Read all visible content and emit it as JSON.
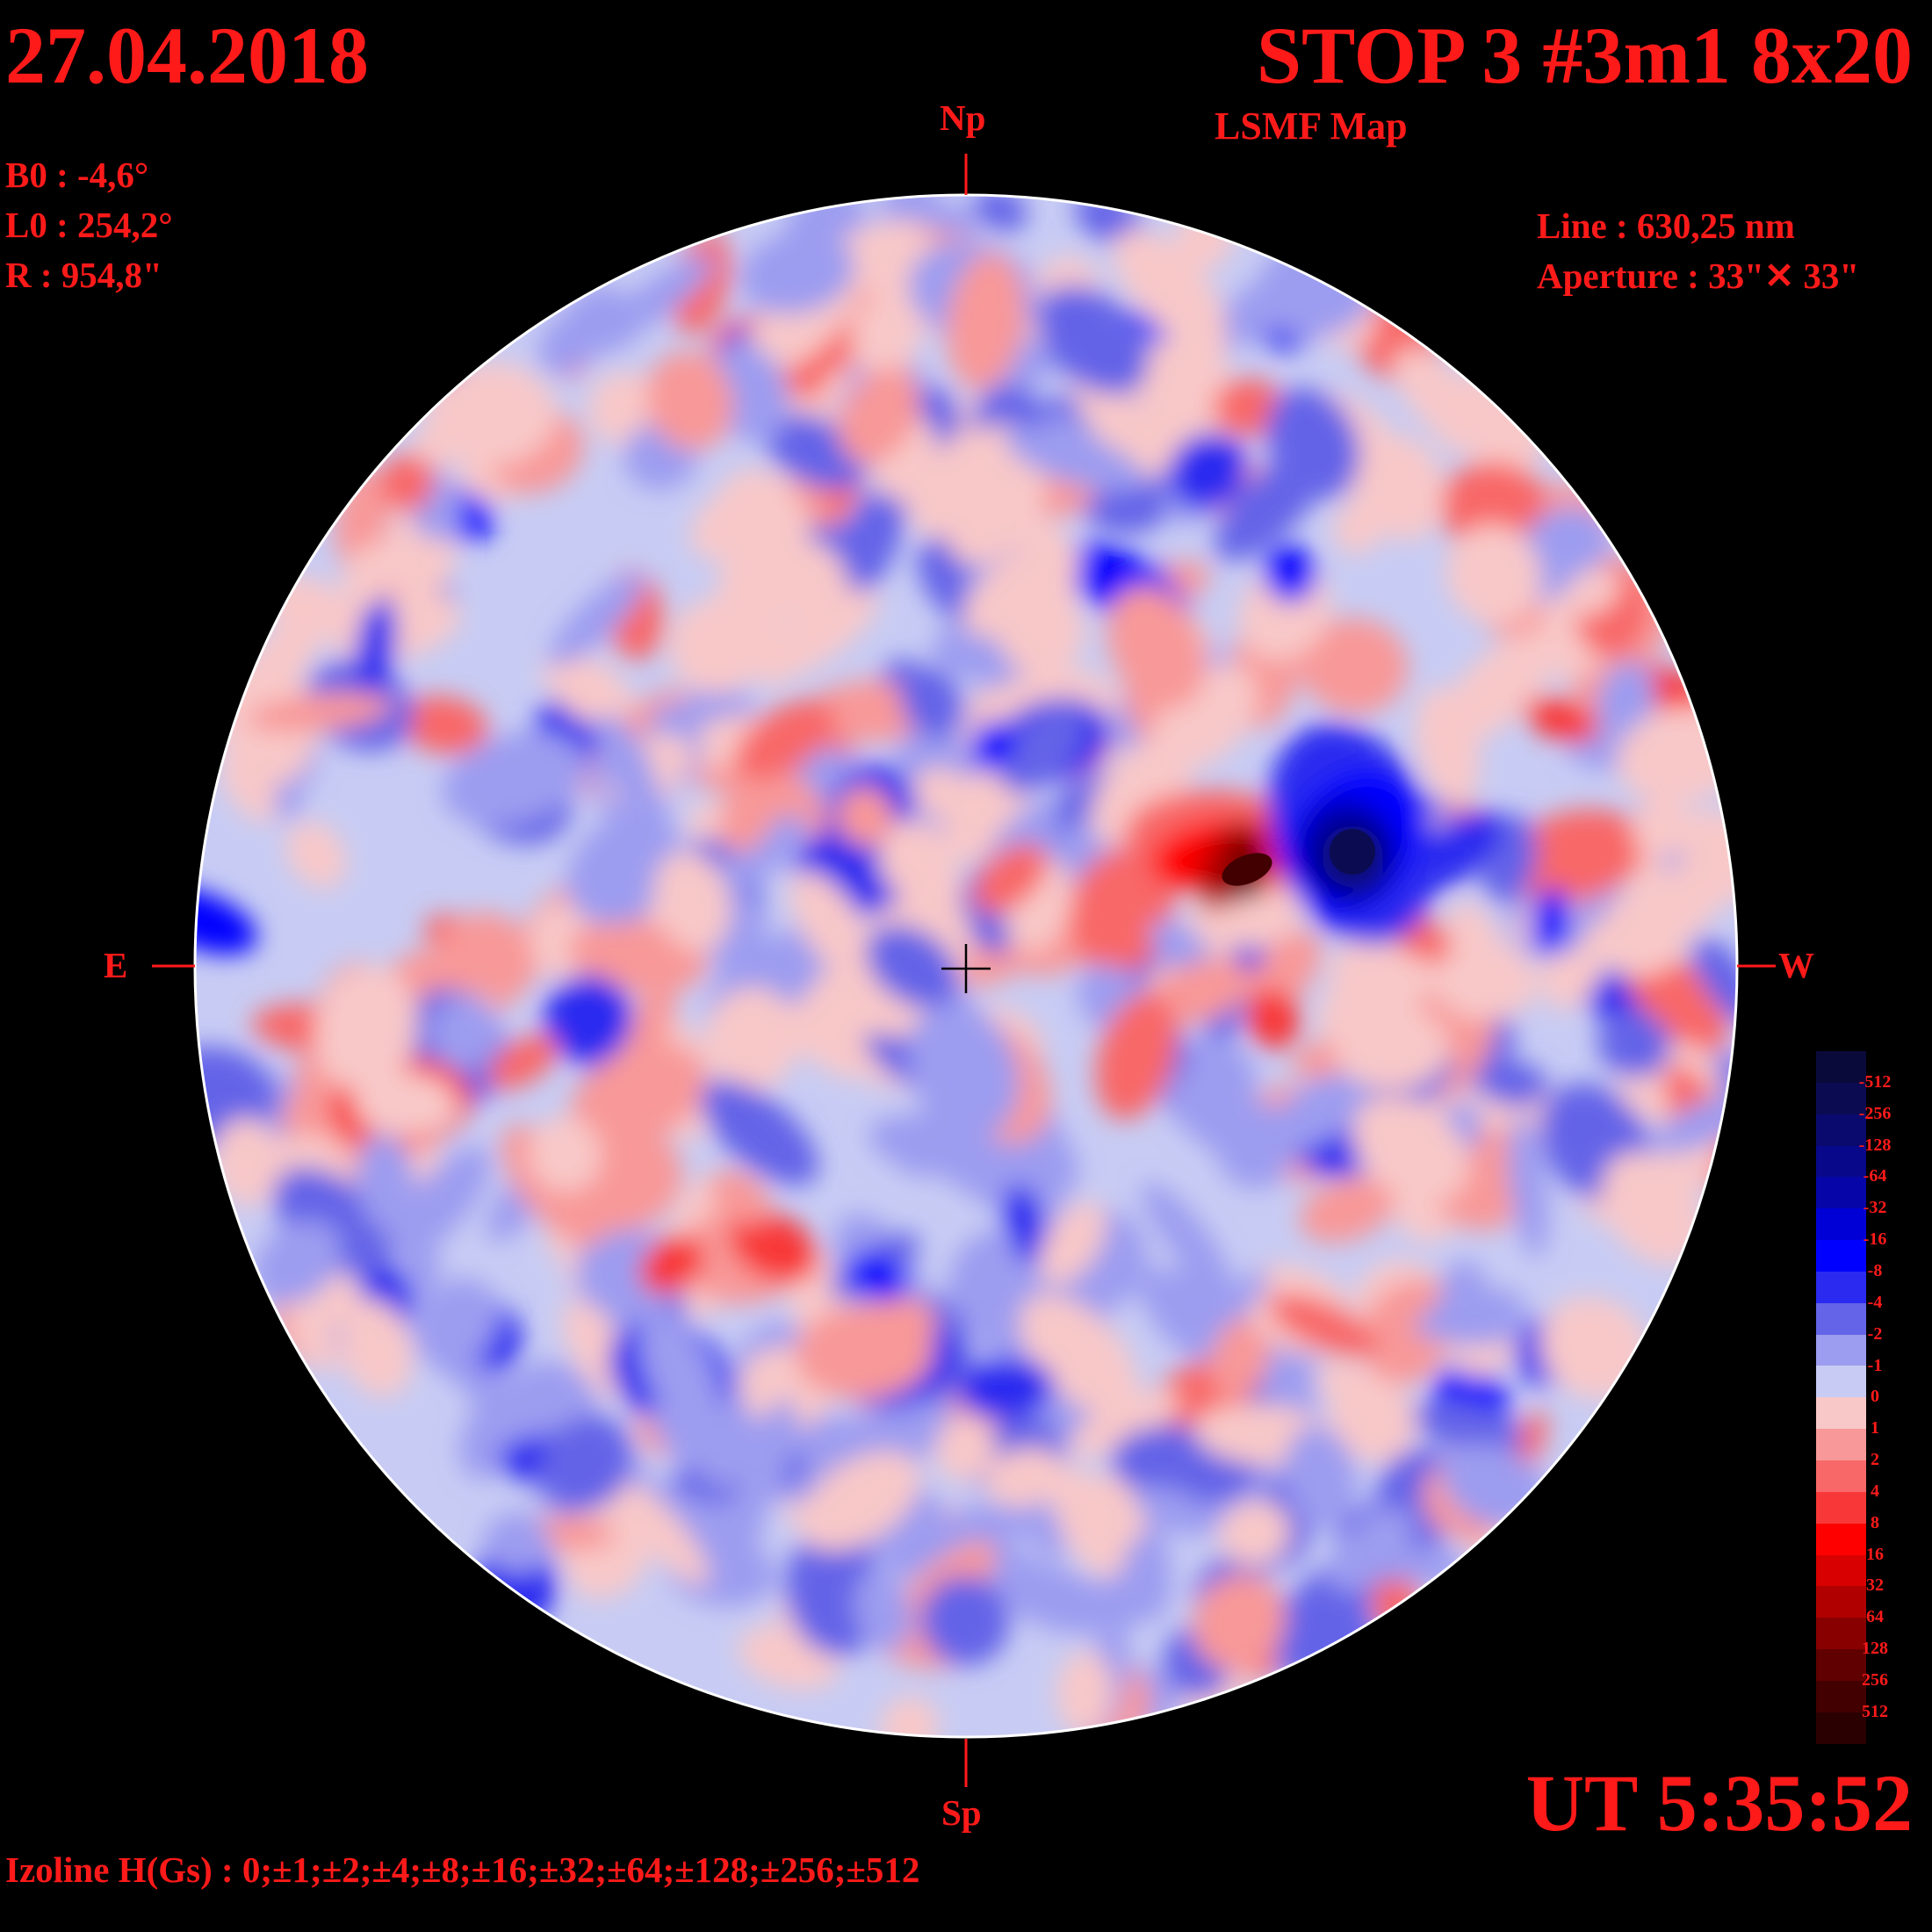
{
  "header": {
    "date": "27.04.2018",
    "title": "STOP 3 #3m1 8x20",
    "map_type": "LSMF  Map"
  },
  "params": {
    "b0": "B0 : -4,6°",
    "l0": "L0 : 254,2°",
    "r": "R  : 954,8\"",
    "line": "Line :  630,25 nm",
    "aperture": "Aperture : 33\"✕ 33\""
  },
  "directions": {
    "north": "Np",
    "south": "Sp",
    "east": "E",
    "west": "W"
  },
  "footer": {
    "ut": "UT 5:35:52",
    "izoline": "Izoline H(Gs) : 0;±1;±2;±4;±8;±16;±32;±64;±128;±256;±512"
  },
  "colorbar": {
    "labels": [
      "-512",
      "-256",
      "-128",
      "-64",
      "-32",
      "-16",
      "-8",
      "-4",
      "-2",
      "-1",
      "0",
      "1",
      "2",
      "4",
      "8",
      "16",
      "32",
      "64",
      "128",
      "256",
      "512"
    ],
    "colors": [
      "#0a0a3a",
      "#0b0b52",
      "#0a0a6e",
      "#08088a",
      "#0505a8",
      "#0000d6",
      "#0000ff",
      "#2a2af0",
      "#6464e8",
      "#9c9cf0",
      "#c8ccf4",
      "#f8c8c8",
      "#f89898",
      "#f86868",
      "#f83838",
      "#ff0000",
      "#d80000",
      "#b00000",
      "#880000",
      "#600000",
      "#420000",
      "#2a0000"
    ],
    "positive_color": "#ff0000",
    "negative_color": "#0000ff",
    "background": "#000000"
  }
}
